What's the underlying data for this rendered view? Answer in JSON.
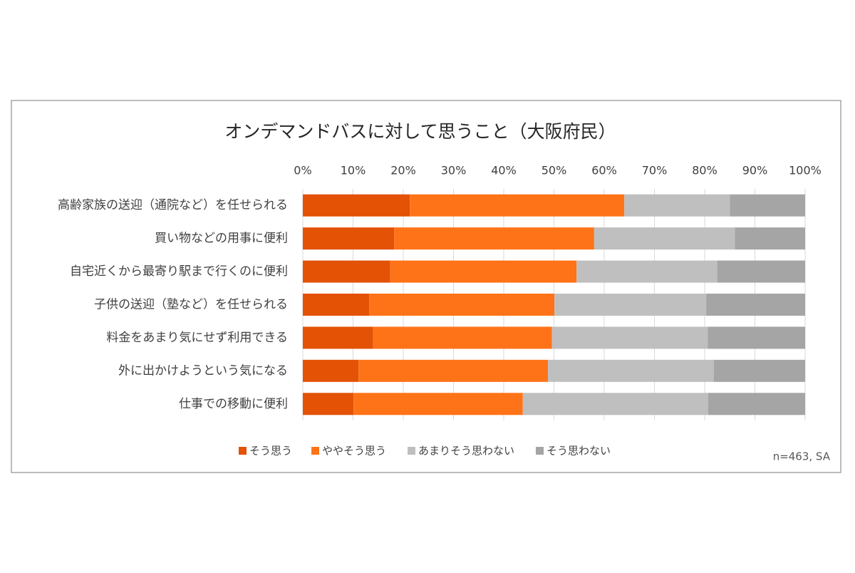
{
  "chart_data": {
    "type": "stacked-bar-horizontal",
    "title": "オンデマンドバスに対して思うこと（大阪府民）",
    "note": "n=463, SA",
    "categories": [
      "高齢家族の送迎（通院など）を任せられる",
      "買い物などの用事に便利",
      "自宅近くから最寄り駅まで行くのに便利",
      "子供の送迎（塾など）を任せられる",
      "料金をあまり気にせず利用できる",
      "外に出かけようという気になる",
      "仕事での移動に便利"
    ],
    "series": [
      {
        "name": "そう思う",
        "color": "#e35205",
        "values": [
          21.3,
          18.2,
          17.4,
          13.2,
          14.0,
          11.1,
          10.1
        ]
      },
      {
        "name": "ややそう思う",
        "color": "#ff7318",
        "values": [
          42.7,
          39.8,
          37.1,
          36.9,
          35.6,
          37.7,
          33.7
        ]
      },
      {
        "name": "あまりそう思わない",
        "color": "#bfbfbf",
        "values": [
          21.0,
          28.0,
          28.0,
          30.2,
          31.0,
          33.0,
          36.9
        ]
      },
      {
        "name": "そう思わない",
        "color": "#a5a5a5",
        "values": [
          15.0,
          14.0,
          17.5,
          19.7,
          19.4,
          18.2,
          19.3
        ]
      }
    ],
    "xlim": [
      0,
      100
    ],
    "xticks": [
      {
        "value": 0,
        "label": "0%"
      },
      {
        "value": 10,
        "label": "10%"
      },
      {
        "value": 20,
        "label": "20%"
      },
      {
        "value": 30,
        "label": "30%"
      },
      {
        "value": 40,
        "label": "40%"
      },
      {
        "value": 50,
        "label": "50%"
      },
      {
        "value": 60,
        "label": "60%"
      },
      {
        "value": 70,
        "label": "70%"
      },
      {
        "value": 80,
        "label": "80%"
      },
      {
        "value": 90,
        "label": "90%"
      },
      {
        "value": 100,
        "label": "100%"
      }
    ],
    "grid": true,
    "legend": "bottom"
  }
}
